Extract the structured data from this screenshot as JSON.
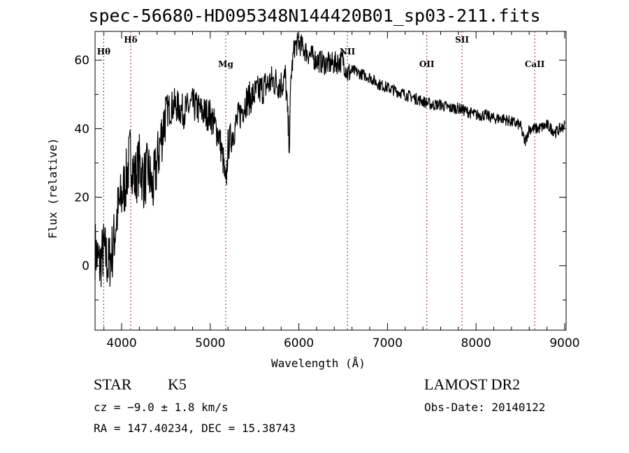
{
  "chart_data": {
    "type": "line",
    "title": "spec-56680-HD095348N144420B01_sp03-211.fits",
    "xlabel": "Wavelength (Å)",
    "ylabel": "Flux (relative)",
    "xlim": [
      3700,
      9016
    ],
    "ylim": [
      -18.8,
      68.4
    ],
    "xticks": [
      4000,
      5000,
      6000,
      7000,
      8000,
      9000
    ],
    "xtick_labels": [
      "4000",
      "5000",
      "6000",
      "7000",
      "8000",
      "9000"
    ],
    "yticks": [
      0,
      20,
      40,
      60
    ],
    "ytick_labels": [
      "0",
      "20",
      "40",
      "60"
    ],
    "grid": false,
    "lines": [
      {
        "label": "Hθ",
        "wavelength": 3798
      },
      {
        "label": "Hδ",
        "wavelength": 4102
      },
      {
        "label": "Mg",
        "wavelength": 5175
      },
      {
        "label": "NII",
        "wavelength": 6548
      },
      {
        "label": "OII",
        "wavelength": 7444
      },
      {
        "label": "SII",
        "wavelength": 7841
      },
      {
        "label": "CaII",
        "wavelength": 8662
      }
    ],
    "series": [
      {
        "name": "flux",
        "x": [
          3700,
          3750,
          3800,
          3850,
          3900,
          3950,
          4000,
          4050,
          4100,
          4150,
          4200,
          4250,
          4300,
          4350,
          4400,
          4450,
          4500,
          4600,
          4700,
          4800,
          4900,
          5000,
          5100,
          5150,
          5175,
          5200,
          5300,
          5400,
          5500,
          5600,
          5700,
          5800,
          5850,
          5880,
          5895,
          5910,
          5950,
          6000,
          6100,
          6200,
          6300,
          6400,
          6500,
          6550,
          6600,
          6700,
          6800,
          6900,
          7000,
          7100,
          7200,
          7300,
          7400,
          7500,
          7600,
          7700,
          7800,
          7900,
          8000,
          8100,
          8200,
          8300,
          8400,
          8500,
          8550,
          8600,
          8700,
          8800,
          8900,
          9000
        ],
        "y": [
          5,
          0,
          5,
          0,
          5,
          15,
          20,
          25,
          33,
          25,
          30,
          25,
          28,
          22,
          30,
          38,
          45,
          47,
          45,
          47,
          45,
          44,
          38,
          30,
          22,
          35,
          42,
          48,
          50,
          52,
          54,
          53,
          55,
          40,
          36,
          55,
          64,
          65,
          62,
          60,
          59,
          59,
          60,
          56,
          57,
          56,
          55,
          53,
          52,
          51,
          50,
          49,
          48,
          47,
          47,
          46,
          46,
          45,
          44,
          44,
          43,
          43,
          42,
          41,
          36,
          40,
          40,
          41,
          39,
          41
        ]
      }
    ]
  },
  "info": {
    "object": "STAR",
    "subclass": "K5",
    "survey": "LAMOST DR2",
    "cz": "cz = −9.0 ± 1.8 km/s",
    "obs_date": "Obs-Date: 20140122",
    "coords": "RA = 147.40234, DEC =  15.38743"
  }
}
